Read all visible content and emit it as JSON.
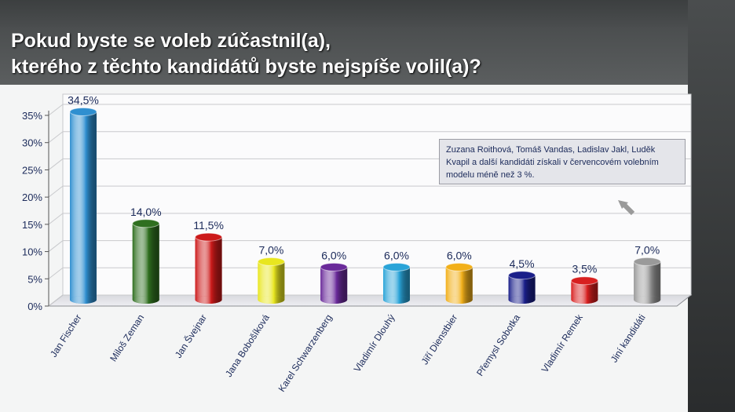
{
  "title_lines": [
    "Pokud byste se voleb zúčastnil(a),",
    "kterého z těchto kandidátů byste nejspíše volil(a)?"
  ],
  "note": "Zuzana Roithová, Tomáš Vandas, Ladislav Jakl, Luděk Kvapil a další kandidáti získali v červencovém volebním modelu méně než 3 %.",
  "chart_data": {
    "type": "bar",
    "title": "Pokud byste se voleb zúčastnil(a), kterého z těchto kandidátů byste nejspíše volil(a)?",
    "categories": [
      "Jan Fischer",
      "Miloš Zeman",
      "Jan Švejnar",
      "Jana Bobošíková",
      "Karel Schwarzenberg",
      "Vladimír Dlouhý",
      "Jiří Dienstbier",
      "Přemysl Sobotka",
      "Vladimír Remek",
      "Jiní kandidáti"
    ],
    "values": [
      34.5,
      14.0,
      11.5,
      7.0,
      6.0,
      6.0,
      6.0,
      4.5,
      3.5,
      7.0
    ],
    "value_labels": [
      "34,5%",
      "14,0%",
      "11,5%",
      "7,0%",
      "6,0%",
      "6,0%",
      "6,0%",
      "4,5%",
      "3,5%",
      "7,0%"
    ],
    "colors": [
      "#2f8fd0",
      "#2f6f1f",
      "#cc1a1a",
      "#e8e61f",
      "#6a2a9a",
      "#2aa4d8",
      "#f2b01a",
      "#1a1f8a",
      "#d82020",
      "#9a9a9a"
    ],
    "yticks": [
      "0%",
      "5%",
      "10%",
      "15%",
      "20%",
      "25%",
      "30%",
      "35%"
    ],
    "ylim": [
      0,
      35
    ],
    "grid": true,
    "xlabel": "",
    "ylabel": ""
  }
}
